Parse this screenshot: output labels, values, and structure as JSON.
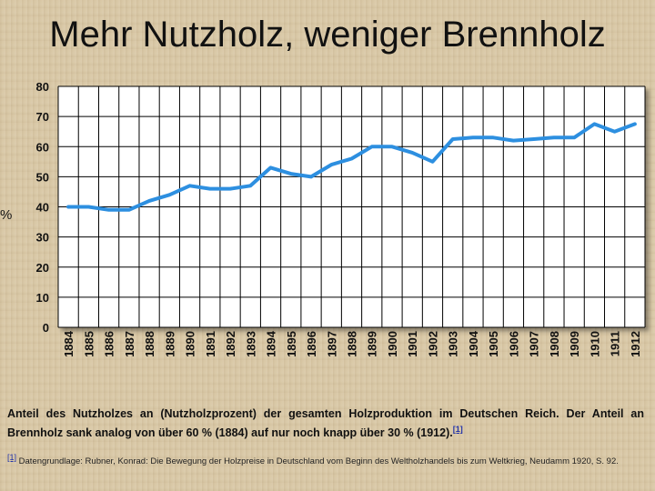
{
  "title": "Mehr Nutzholz, weniger Brennholz",
  "caption": {
    "text": "Anteil des Nutzholzes an (Nutzholzprozent) der gesamten Holzproduktion im Deutschen Reich. Der Anteil an Brennholz sank analog von über 60 % (1884) auf nur noch knapp über 30 % (1912).",
    "ref": "[1]"
  },
  "footnote": {
    "ref": "[1]",
    "text": "Datengrundlage: Rubner, Konrad: Die Bewegung der Holzpreise in Deutschland vom Beginn des Weltholzhandels bis zum Weltkrieg, Neudamm 1920, S. 92."
  },
  "colors": {
    "line": "#2d8fe0",
    "grid": "#000000",
    "plot_bg": "#ffffff"
  },
  "chart_data": {
    "type": "line",
    "title": "Mehr Nutzholz, weniger Brennholz",
    "ylabel": "%",
    "xlabel": "",
    "ylim": [
      0,
      80
    ],
    "yticks": [
      0,
      10,
      20,
      30,
      40,
      50,
      60,
      70,
      80
    ],
    "grid": true,
    "x": [
      "1884",
      "1885",
      "1886",
      "1887",
      "1888",
      "1889",
      "1890",
      "1891",
      "1892",
      "1893",
      "1894",
      "1895",
      "1896",
      "1897",
      "1898",
      "1899",
      "1900",
      "1901",
      "1902",
      "1903",
      "1904",
      "1905",
      "1906",
      "1907",
      "1908",
      "1909",
      "1910",
      "1911",
      "1912"
    ],
    "series": [
      {
        "values": [
          40,
          40,
          39,
          39,
          42,
          44,
          47,
          46,
          46,
          47,
          53,
          51,
          50,
          54,
          56,
          60,
          60,
          58,
          55,
          62.5,
          63,
          63,
          62,
          62.5,
          63,
          63,
          67.5,
          65,
          67.5
        ]
      }
    ]
  }
}
